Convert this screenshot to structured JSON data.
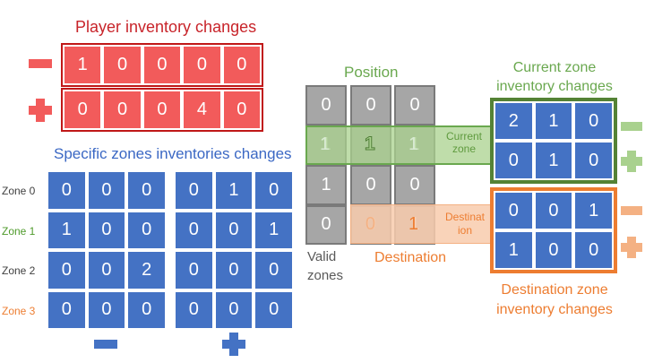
{
  "colors": {
    "red": "#c8242a",
    "red_fill": "#f25b5b",
    "blue": "#4472c4",
    "blue_text": "#3b68c4",
    "green": "#6aa84f",
    "green_dark": "#4e7c35",
    "green_fill": "#c5e0b4",
    "orange": "#ed7d31",
    "orange_fill": "#f8cbad",
    "gray": "#a6a6a6"
  },
  "player": {
    "title": "Player inventory changes",
    "minus_row": [
      "1",
      "0",
      "0",
      "0",
      "0"
    ],
    "plus_row": [
      "0",
      "0",
      "0",
      "4",
      "0"
    ]
  },
  "specific": {
    "title": "Specific zones inventories changes",
    "zones": [
      "Zone 0",
      "Zone 1",
      "Zone 2",
      "Zone 3"
    ],
    "minus_grid": [
      [
        "0",
        "0",
        "0"
      ],
      [
        "1",
        "0",
        "0"
      ],
      [
        "0",
        "0",
        "2"
      ],
      [
        "0",
        "0",
        "0"
      ]
    ],
    "plus_grid": [
      [
        "0",
        "1",
        "0"
      ],
      [
        "0",
        "0",
        "1"
      ],
      [
        "0",
        "0",
        "0"
      ],
      [
        "0",
        "0",
        "0"
      ]
    ]
  },
  "position": {
    "title": "Position",
    "valid_zones": [
      "0",
      "1",
      "1",
      "0"
    ],
    "cols": [
      [
        "0",
        "1",
        "0",
        "0"
      ],
      [
        "0",
        "1",
        "0",
        "1"
      ]
    ],
    "current_tag": "Current\nzone",
    "destination_tag": "Destinat\nion",
    "destination_label": "Destination",
    "valid_label": "Valid\nzones"
  },
  "current_zone": {
    "title": "Current zone\ninventory changes",
    "grid": [
      [
        "2",
        "1",
        "0"
      ],
      [
        "0",
        "1",
        "0"
      ]
    ]
  },
  "destination_zone": {
    "title": "Destination zone\ninventory changes",
    "grid": [
      [
        "0",
        "0",
        "1"
      ],
      [
        "1",
        "0",
        "0"
      ]
    ]
  }
}
